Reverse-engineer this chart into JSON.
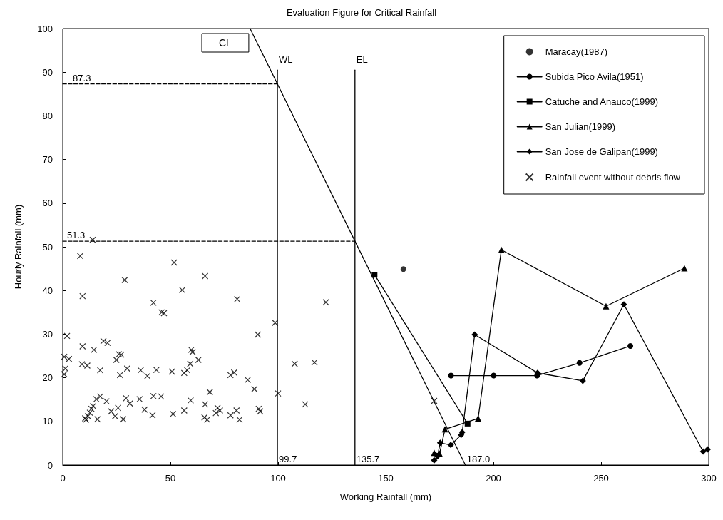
{
  "chart_data": {
    "type": "scatter",
    "title": "Evaluation Figure for Critical Rainfall",
    "xlabel": "Working Rainfall (mm)",
    "ylabel": "Hourly Rainfall (mm)",
    "xlim": [
      0,
      300
    ],
    "xticks": [
      0,
      50,
      100,
      150,
      200,
      250,
      300
    ],
    "ylim": [
      0,
      100
    ],
    "yticks": [
      0,
      10,
      20,
      30,
      40,
      50,
      60,
      70,
      80,
      90,
      100
    ],
    "grid": false,
    "legend": "top right",
    "series": [
      {
        "name": "Maracay(1987)",
        "marker": "circle",
        "color": "#000000",
        "x": [
          158.2
        ],
        "values": [
          44.9
        ]
      },
      {
        "name": "Subida Pico Avila(1951)",
        "type": "line",
        "marker": "circle",
        "color": "#000000",
        "x": [
          180.3,
          200.1,
          220.3,
          240.0,
          263.6
        ],
        "values": [
          20.5,
          20.5,
          20.5,
          23.4,
          27.3
        ]
      },
      {
        "name": "Catuche and Anauco(1999)",
        "type": "line",
        "marker": "square",
        "color": "#000000",
        "x": [
          144.8,
          188.0
        ],
        "values": [
          43.6,
          9.5
        ]
      },
      {
        "name": "San Julian(1999)",
        "type": "line",
        "marker": "triangle",
        "color": "#000000",
        "x": [
          172.5,
          175.0,
          177.5,
          192.9,
          203.7,
          252.3,
          288.7
        ],
        "values": [
          2.8,
          2.6,
          8.2,
          10.7,
          49.3,
          36.4,
          45.1
        ]
      },
      {
        "name": "San Jose de Galipan(1999)",
        "type": "line",
        "marker": "diamond",
        "color": "#000000",
        "x": [
          172.5,
          174.0,
          175.3,
          180.2,
          185.0,
          185.5,
          191.3,
          220.5,
          241.5,
          260.6,
          297.4,
          299.5
        ],
        "values": [
          1.1,
          2.0,
          5.1,
          4.6,
          6.9,
          7.5,
          29.9,
          21.1,
          19.3,
          36.8,
          3.1,
          3.6
        ]
      },
      {
        "name": "Rainfall event without debris flow",
        "marker": "cross",
        "color": "#000000",
        "x": [
          13.9,
          8.1,
          51.7,
          28.8,
          66.1,
          55.5,
          9.2,
          81.0,
          42.1,
          45.9,
          47.0,
          98.6,
          90.6,
          2.0,
          9.2,
          14.5,
          18.9,
          20.8,
          59.7,
          60.3,
          26.1,
          27.2,
          24.9,
          0.7,
          2.9,
          63.0,
          59.2,
          8.9,
          11.4,
          1.2,
          17.4,
          29.9,
          26.6,
          36.2,
          39.3,
          43.5,
          50.7,
          56.4,
          57.8,
          0.7,
          77.9,
          79.6,
          85.9,
          89.0,
          107.7,
          100.0,
          17.4,
          15.6,
          20.3,
          29.4,
          31.2,
          35.7,
          42.1,
          45.7,
          59.4,
          68.3,
          66.1,
          71.9,
          73.0,
          38.0,
          25.7,
          22.5,
          24.3,
          28.1,
          16.1,
          41.7,
          51.2,
          56.4,
          65.8,
          67.1,
          71.1,
          77.9,
          80.7,
          82.1,
          91.0,
          91.7,
          10.8,
          11.7,
          12.6,
          13.3,
          14.1,
          10.4,
          116.9,
          112.6,
          122.2,
          172.5
        ],
        "values": [
          51.6,
          47.9,
          46.4,
          42.4,
          43.3,
          40.1,
          38.7,
          38.0,
          37.2,
          35.0,
          34.8,
          32.6,
          29.9,
          29.6,
          27.2,
          26.4,
          28.4,
          28.0,
          26.4,
          25.9,
          25.4,
          25.3,
          24.1,
          24.8,
          24.3,
          24.1,
          23.2,
          23.1,
          22.8,
          22.1,
          21.7,
          22.1,
          20.6,
          21.7,
          20.4,
          21.8,
          21.4,
          21.1,
          21.7,
          20.8,
          20.6,
          21.2,
          19.5,
          17.4,
          23.2,
          16.4,
          15.7,
          15.1,
          14.6,
          15.3,
          14.1,
          15.1,
          15.8,
          15.7,
          14.8,
          16.7,
          13.9,
          13.1,
          12.5,
          12.7,
          13.1,
          12.3,
          11.2,
          10.5,
          10.5,
          11.4,
          11.7,
          12.5,
          10.9,
          10.4,
          11.9,
          11.4,
          12.5,
          10.4,
          12.9,
          12.3,
          10.4,
          11.2,
          12.0,
          12.9,
          13.5,
          10.7,
          23.5,
          13.9,
          37.3,
          14.7
        ]
      },
      {
        "type": "line",
        "marker": "none",
        "line_style": "solid",
        "color": "#000000",
        "x": [
          87,
          187
        ],
        "values": [
          100,
          0
        ]
      },
      {
        "type": "line",
        "marker": "none",
        "line_style": "solid",
        "color": "#000000",
        "x": [
          99.7,
          99.7
        ],
        "values": [
          0,
          90.5
        ]
      },
      {
        "type": "line",
        "marker": "none",
        "line_style": "solid",
        "color": "#000000",
        "x": [
          135.7,
          135.7
        ],
        "values": [
          0,
          90.5
        ]
      },
      {
        "type": "line",
        "marker": "none",
        "line_style": "dashed",
        "color": "#000000",
        "x": [
          0,
          99.7
        ],
        "values": [
          87.3,
          87.3
        ]
      },
      {
        "type": "line",
        "marker": "none",
        "line_style": "dashed",
        "color": "#000000",
        "x": [
          0,
          135.7
        ],
        "values": [
          51.3,
          51.3
        ]
      }
    ],
    "annotations": [
      "CL",
      {
        "text": "WL",
        "x": 99.7,
        "y": 90.5
      },
      {
        "text": "EL",
        "x": 135.7,
        "y": 90.5
      },
      {
        "text": "87.3",
        "x": 4,
        "y": 87.3
      },
      {
        "text": "51.3",
        "x": 1.3,
        "y": 51.3
      },
      {
        "text": "99.7",
        "x": 99.7,
        "y": 0
      },
      {
        "text": "135.7",
        "x": 135.7,
        "y": 0
      },
      {
        "text": "187.0",
        "x": 187,
        "y": 0
      }
    ]
  }
}
